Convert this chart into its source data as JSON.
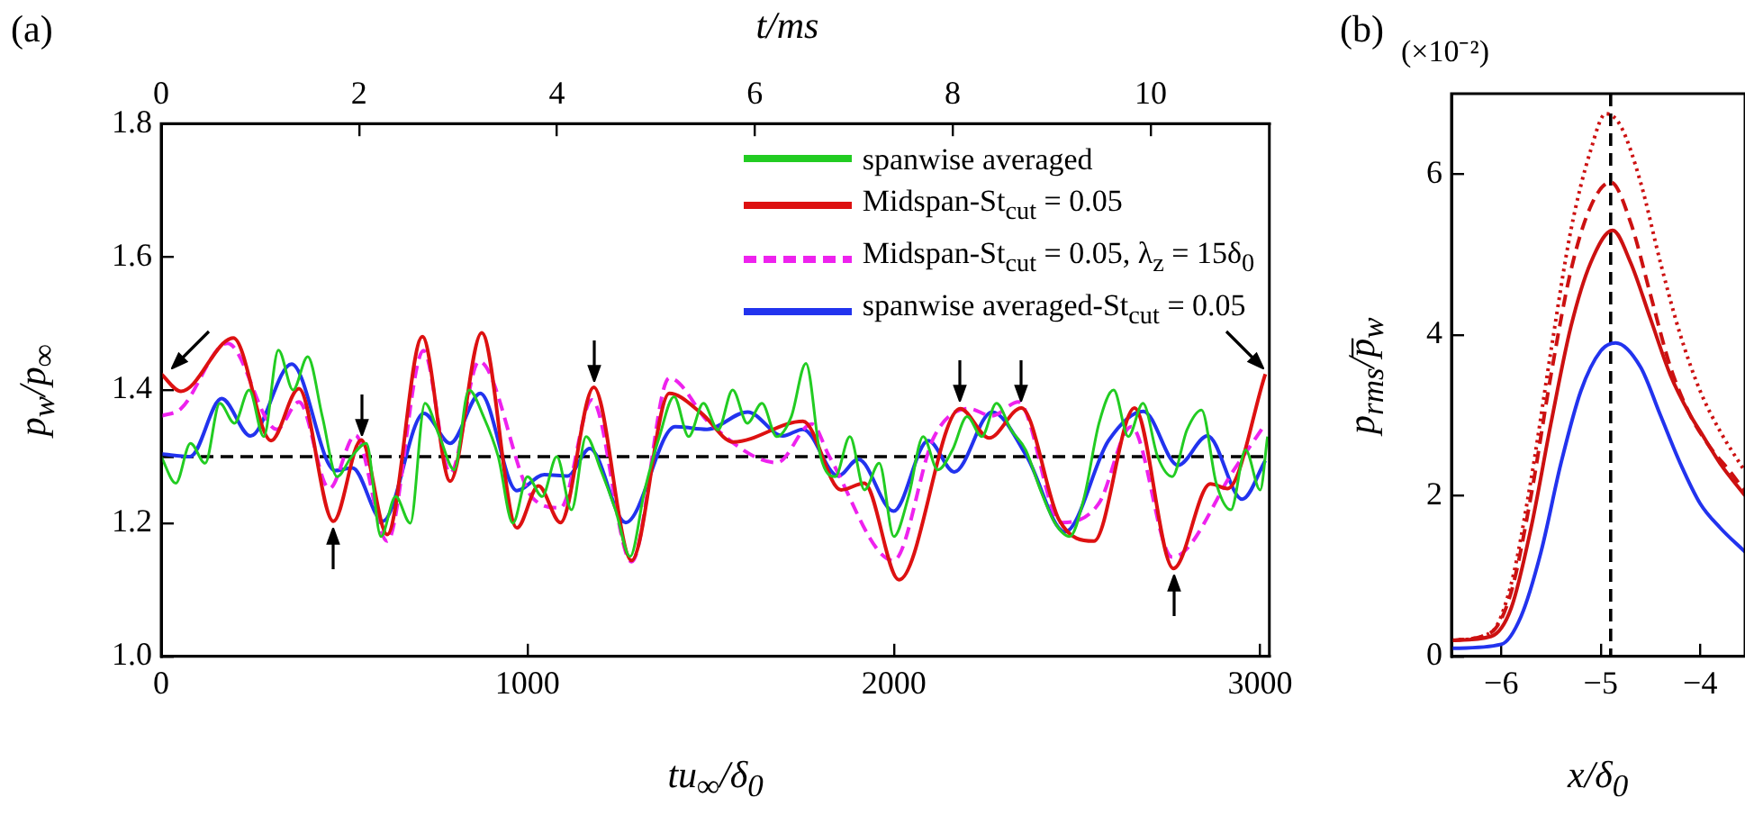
{
  "chart_data": [
    {
      "type": "line",
      "title": "(a)",
      "xlabel": "tu$_{∞}$/δ$_{0}$",
      "ylabel": "p$_{w}$/p$_{∞}$",
      "x2label": "t/ms",
      "xlim": [
        0,
        3025
      ],
      "xticks": [
        0,
        1000,
        2000,
        3000
      ],
      "x2lim": [
        0,
        11.2
      ],
      "x2ticks": [
        0,
        2,
        4,
        6,
        8,
        10
      ],
      "ylim": [
        1.0,
        1.8
      ],
      "yticks": [
        {
          "value": 1.0,
          "label": "1.0"
        },
        1.2,
        1.4,
        1.6,
        {
          "value": 1.8,
          "label": "1.8"
        }
      ],
      "legend": "top right",
      "series": [
        {
          "name": "spanwise averaged",
          "color": "#22cc22",
          "line_style": "solid",
          "x": [
            0,
            40,
            80,
            120,
            160,
            200,
            240,
            280,
            320,
            360,
            400,
            440,
            480,
            520,
            560,
            600,
            640,
            680,
            720,
            760,
            800,
            840,
            880,
            920,
            960,
            1000,
            1040,
            1080,
            1120,
            1160,
            1200,
            1240,
            1280,
            1320,
            1360,
            1400,
            1440,
            1480,
            1520,
            1560,
            1600,
            1640,
            1680,
            1720,
            1760,
            1800,
            1840,
            1880,
            1920,
            1960,
            2000,
            2040,
            2080,
            2120,
            2160,
            2200,
            2240,
            2280,
            2320,
            2360,
            2400,
            2440,
            2480,
            2520,
            2560,
            2600,
            2640,
            2680,
            2720,
            2760,
            2800,
            2840,
            2880,
            2920,
            2960,
            3000,
            3020
          ],
          "values": [
            1.3,
            1.26,
            1.32,
            1.29,
            1.38,
            1.35,
            1.4,
            1.33,
            1.46,
            1.4,
            1.45,
            1.36,
            1.27,
            1.3,
            1.32,
            1.18,
            1.24,
            1.2,
            1.38,
            1.33,
            1.28,
            1.4,
            1.36,
            1.3,
            1.2,
            1.27,
            1.24,
            1.3,
            1.22,
            1.33,
            1.28,
            1.22,
            1.15,
            1.25,
            1.33,
            1.39,
            1.33,
            1.38,
            1.34,
            1.4,
            1.35,
            1.38,
            1.33,
            1.36,
            1.44,
            1.3,
            1.27,
            1.33,
            1.25,
            1.29,
            1.18,
            1.24,
            1.33,
            1.28,
            1.31,
            1.36,
            1.33,
            1.38,
            1.34,
            1.31,
            1.25,
            1.2,
            1.18,
            1.24,
            1.35,
            1.4,
            1.33,
            1.38,
            1.3,
            1.27,
            1.34,
            1.37,
            1.26,
            1.22,
            1.31,
            1.25,
            1.33
          ]
        },
        {
          "name": "Midspan-St$_{cut}$ = 0.05",
          "color": "#dd1111",
          "line_style": "solid",
          "x": [
            0,
            54,
            197,
            300,
            376,
            470,
            546,
            617,
            713,
            789,
            875,
            971,
            1030,
            1090,
            1181,
            1284,
            1387,
            1475,
            1562,
            1752,
            1856,
            1919,
            2014,
            2181,
            2260,
            2348,
            2451,
            2546,
            2657,
            2763,
            2864,
            2911,
            3014
          ],
          "values": [
            1.424,
            1.398,
            1.478,
            1.324,
            1.402,
            1.203,
            1.325,
            1.183,
            1.48,
            1.263,
            1.486,
            1.193,
            1.256,
            1.201,
            1.404,
            1.144,
            1.395,
            1.365,
            1.322,
            1.353,
            1.25,
            1.26,
            1.115,
            1.372,
            1.328,
            1.373,
            1.205,
            1.173,
            1.373,
            1.132,
            1.259,
            1.252,
            1.424
          ]
        },
        {
          "name": "Midspan-St$_{cut}$ = 0.05, λ$_{z}$ = 15δ$_{0}$",
          "color": "#ee22ee",
          "line_style": "dashed",
          "x": [
            0,
            54,
            181,
            316,
            376,
            459,
            530,
            617,
            716,
            789,
            868,
            1014,
            1090,
            1176,
            1284,
            1387,
            1499,
            1681,
            1776,
            1824,
            1999,
            2110,
            2205,
            2267,
            2340,
            2457,
            2560,
            2648,
            2760,
            2933,
            3014
          ],
          "values": [
            1.361,
            1.372,
            1.47,
            1.341,
            1.382,
            1.252,
            1.332,
            1.173,
            1.459,
            1.275,
            1.443,
            1.238,
            1.223,
            1.385,
            1.142,
            1.418,
            1.349,
            1.291,
            1.349,
            1.3,
            1.144,
            1.33,
            1.372,
            1.361,
            1.382,
            1.201,
            1.23,
            1.345,
            1.149,
            1.284,
            1.349
          ]
        },
        {
          "name": "spanwise averaged-St$_{cut}$ = 0.05",
          "color": "#2233ee",
          "line_style": "solid",
          "x": [
            0,
            79,
            165,
            244,
            356,
            475,
            522,
            605,
            717,
            789,
            871,
            971,
            1046,
            1110,
            1170,
            1268,
            1403,
            1490,
            1601,
            1697,
            1752,
            1848,
            1903,
            1999,
            2094,
            2165,
            2268,
            2363,
            2467,
            2586,
            2681,
            2776,
            2856,
            2951,
            3014
          ],
          "values": [
            1.304,
            1.3,
            1.387,
            1.331,
            1.439,
            1.279,
            1.283,
            1.203,
            1.365,
            1.32,
            1.395,
            1.249,
            1.273,
            1.271,
            1.312,
            1.201,
            1.345,
            1.341,
            1.367,
            1.331,
            1.341,
            1.271,
            1.296,
            1.218,
            1.324,
            1.277,
            1.367,
            1.3,
            1.187,
            1.324,
            1.368,
            1.287,
            1.331,
            1.236,
            1.294
          ]
        }
      ],
      "ref_lines": [
        {
          "axis": "y",
          "value": 1.3,
          "color": "#000000",
          "line_style": "dashed"
        }
      ]
    },
    {
      "type": "line",
      "title": "(b)",
      "xlabel": "x/δ$_{0}$",
      "ylabel": "p$_{rms}$/p̅$_{w}$",
      "annotations": [
        "(×10⁻²)"
      ],
      "xlim": [
        -6.5,
        -3.55
      ],
      "xticks": [
        {
          "value": -6,
          "label": "−6"
        },
        {
          "value": -5,
          "label": "−5"
        },
        {
          "value": -4,
          "label": "−4"
        }
      ],
      "ylim": [
        0,
        7
      ],
      "yticks": [
        0,
        2,
        4,
        6
      ],
      "series": [
        {
          "color": "#2233ee",
          "line_style": "solid",
          "x": [
            -6.5,
            -6.0,
            -5.8,
            -5.6,
            -5.4,
            -5.2,
            -5.0,
            -4.85,
            -4.6,
            -4.4,
            -4.2,
            -4.0,
            -3.8,
            -3.55
          ],
          "values": [
            0.1,
            0.15,
            0.5,
            1.3,
            2.4,
            3.3,
            3.8,
            3.9,
            3.6,
            3.0,
            2.4,
            1.9,
            1.6,
            1.3
          ]
        },
        {
          "color": "#cc1111",
          "line_style": "solid",
          "x": [
            -6.5,
            -6.1,
            -5.9,
            -5.7,
            -5.5,
            -5.3,
            -5.1,
            -4.88,
            -4.7,
            -4.5,
            -4.3,
            -4.1,
            -4.0,
            -3.8,
            -3.55
          ],
          "values": [
            0.2,
            0.25,
            0.6,
            1.6,
            2.9,
            4.1,
            4.9,
            5.3,
            4.9,
            4.2,
            3.5,
            3.0,
            2.8,
            2.4,
            2.0
          ]
        },
        {
          "color": "#cc1111",
          "line_style": "dashed",
          "x": [
            -6.5,
            -6.1,
            -5.9,
            -5.7,
            -5.5,
            -5.3,
            -5.1,
            -4.9,
            -4.7,
            -4.5,
            -4.3,
            -4.1,
            -3.9,
            -3.7,
            -3.55
          ],
          "values": [
            0.2,
            0.3,
            0.8,
            2.0,
            3.5,
            4.8,
            5.6,
            5.9,
            5.4,
            4.5,
            3.6,
            3.0,
            2.6,
            2.3,
            2.05
          ]
        },
        {
          "color": "#cc1111",
          "line_style": "dotted",
          "x": [
            -6.5,
            -6.1,
            -5.9,
            -5.7,
            -5.5,
            -5.3,
            -5.1,
            -4.95,
            -4.8,
            -4.6,
            -4.4,
            -4.2,
            -4.0,
            -3.8,
            -3.55
          ],
          "values": [
            0.2,
            0.3,
            0.9,
            2.2,
            3.8,
            5.3,
            6.3,
            6.75,
            6.6,
            5.9,
            4.9,
            4.0,
            3.3,
            2.8,
            2.3
          ]
        }
      ],
      "ref_lines": [
        {
          "axis": "x",
          "value": -4.9,
          "color": "#000000",
          "line_style": "dashed"
        }
      ]
    }
  ]
}
